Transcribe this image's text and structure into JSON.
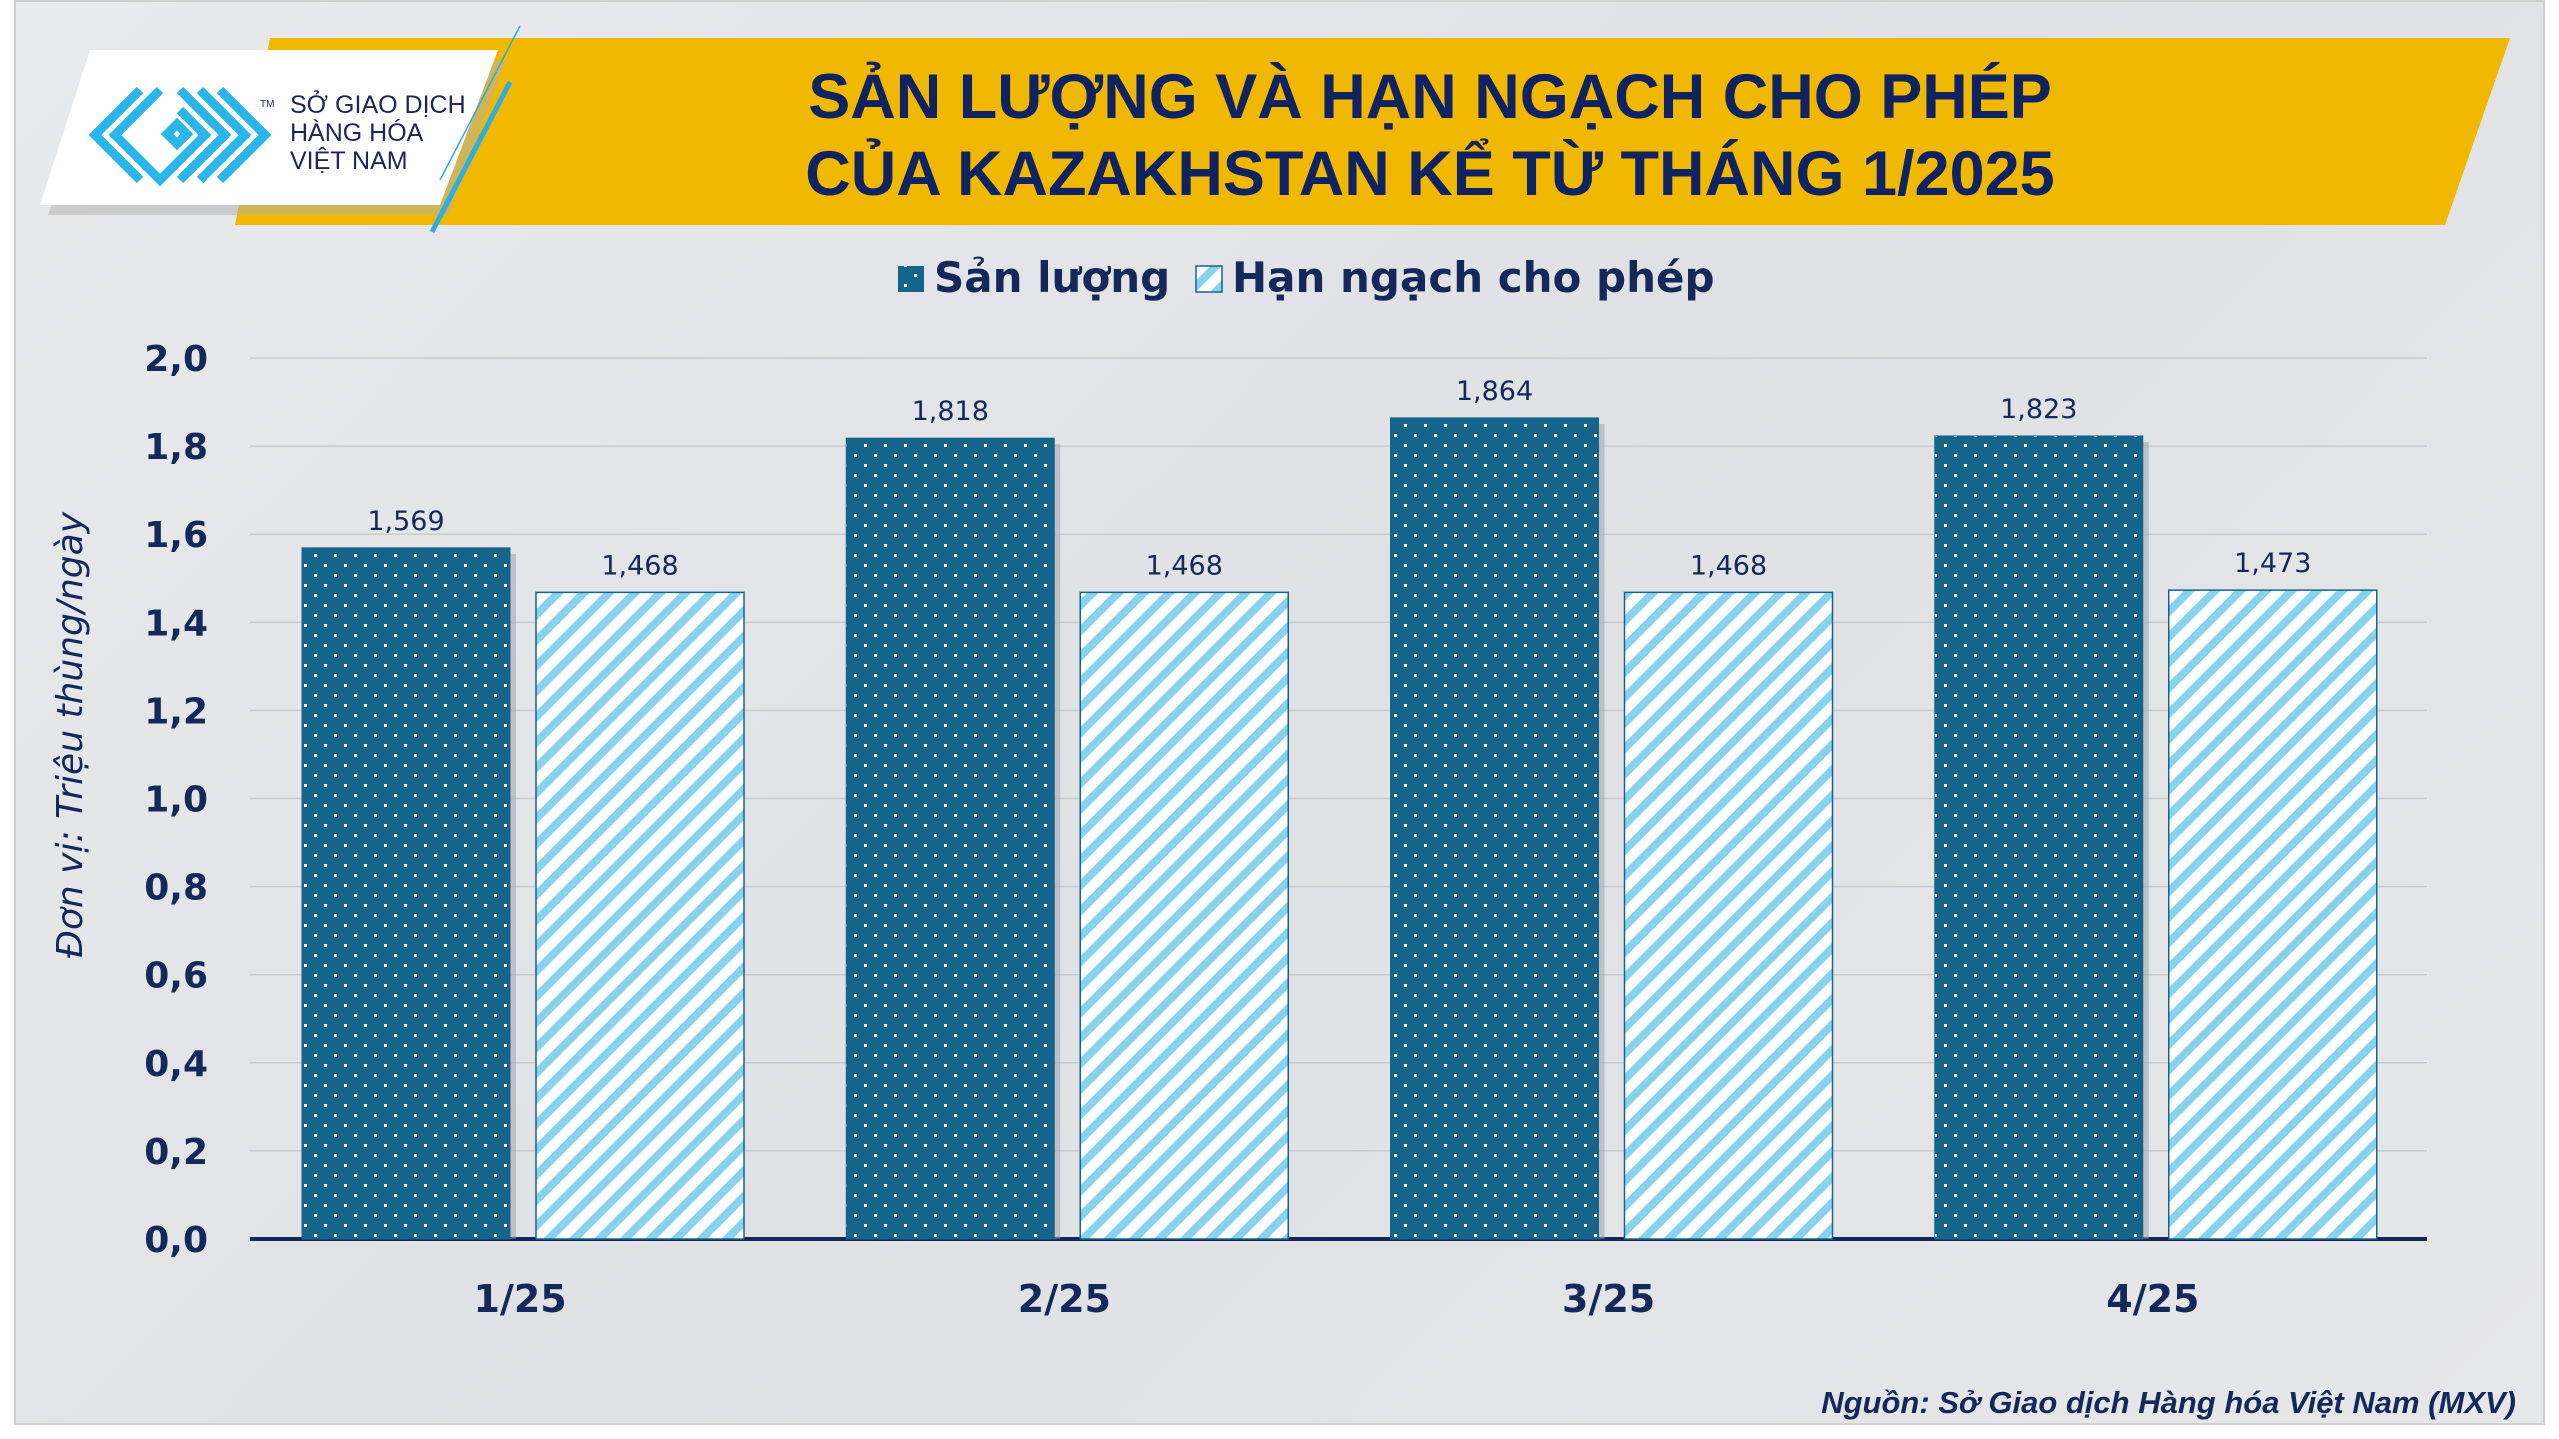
{
  "logo": {
    "line1": "SỞ GIAO DỊCH",
    "line2": "HÀNG HÓA",
    "line3": "VIỆT NAM",
    "tm": "TM"
  },
  "colors": {
    "banner": "#f0b800",
    "production": "#15658a",
    "quota_stripe": "#87d3ef",
    "text": "#14285a"
  },
  "source": "Nguồn: Sở Giao dịch Hàng hóa Việt Nam (MXV)",
  "chart_data": {
    "type": "bar",
    "title_line1": "SẢN LƯỢNG VÀ HẠN NGẠCH CHO PHÉP",
    "title_line2": "CỦA KAZAKHSTAN KỂ TỪ THÁNG 1/2025",
    "categories": [
      "1/25",
      "2/25",
      "3/25",
      "4/25"
    ],
    "series": [
      {
        "name": "Sản lượng",
        "values": [
          1.569,
          1.818,
          1.864,
          1.823
        ],
        "labels": [
          "1,569",
          "1,818",
          "1,864",
          "1,823"
        ]
      },
      {
        "name": "Hạn ngạch cho phép",
        "values": [
          1.468,
          1.468,
          1.468,
          1.473
        ],
        "labels": [
          "1,468",
          "1,468",
          "1,468",
          "1,473"
        ]
      }
    ],
    "ylabel": "Đơn vị: Triệu thùng/ngày",
    "xlabel": "",
    "ylim": [
      0,
      2.0
    ],
    "yticks": [
      "0,0",
      "0,2",
      "0,4",
      "0,6",
      "0,8",
      "1,0",
      "1,2",
      "1,4",
      "1,6",
      "1,8",
      "2,0"
    ],
    "grid": true,
    "legend_position": "top-center"
  }
}
